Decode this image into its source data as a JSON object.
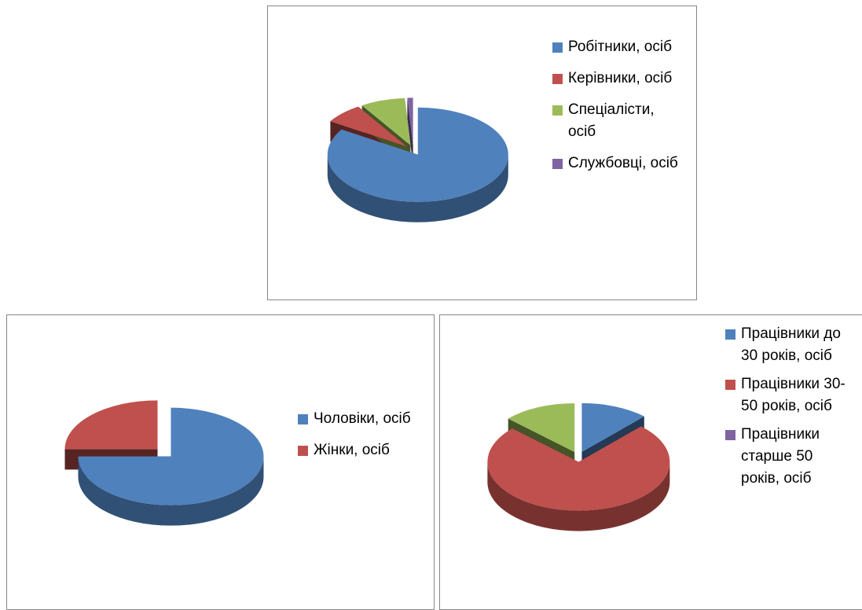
{
  "chart_data": [
    {
      "type": "pie",
      "categories": [
        "Робітники, осіб",
        "Керівники, осіб",
        "Спеціалісти, осіб",
        "Службовці, осіб"
      ],
      "values": [
        84,
        7,
        8,
        1
      ],
      "colors": [
        "#4f81bd",
        "#c0504d",
        "#9bbb59",
        "#8064a2"
      ]
    },
    {
      "type": "pie",
      "categories": [
        "Чоловіки, осіб",
        "Жінки, осіб"
      ],
      "values": [
        75,
        25
      ],
      "colors": [
        "#4f81bd",
        "#c0504d"
      ]
    },
    {
      "type": "pie",
      "categories": [
        "Працівники до 30 років, осіб",
        "Працівники 30-50 років, осіб",
        "Працівники старше 50 років, осіб",
        null
      ],
      "values": [
        12,
        75,
        0,
        13
      ],
      "colors": [
        "#4f81bd",
        "#c0504d",
        "#8064a2",
        "#9bbb59"
      ]
    }
  ]
}
